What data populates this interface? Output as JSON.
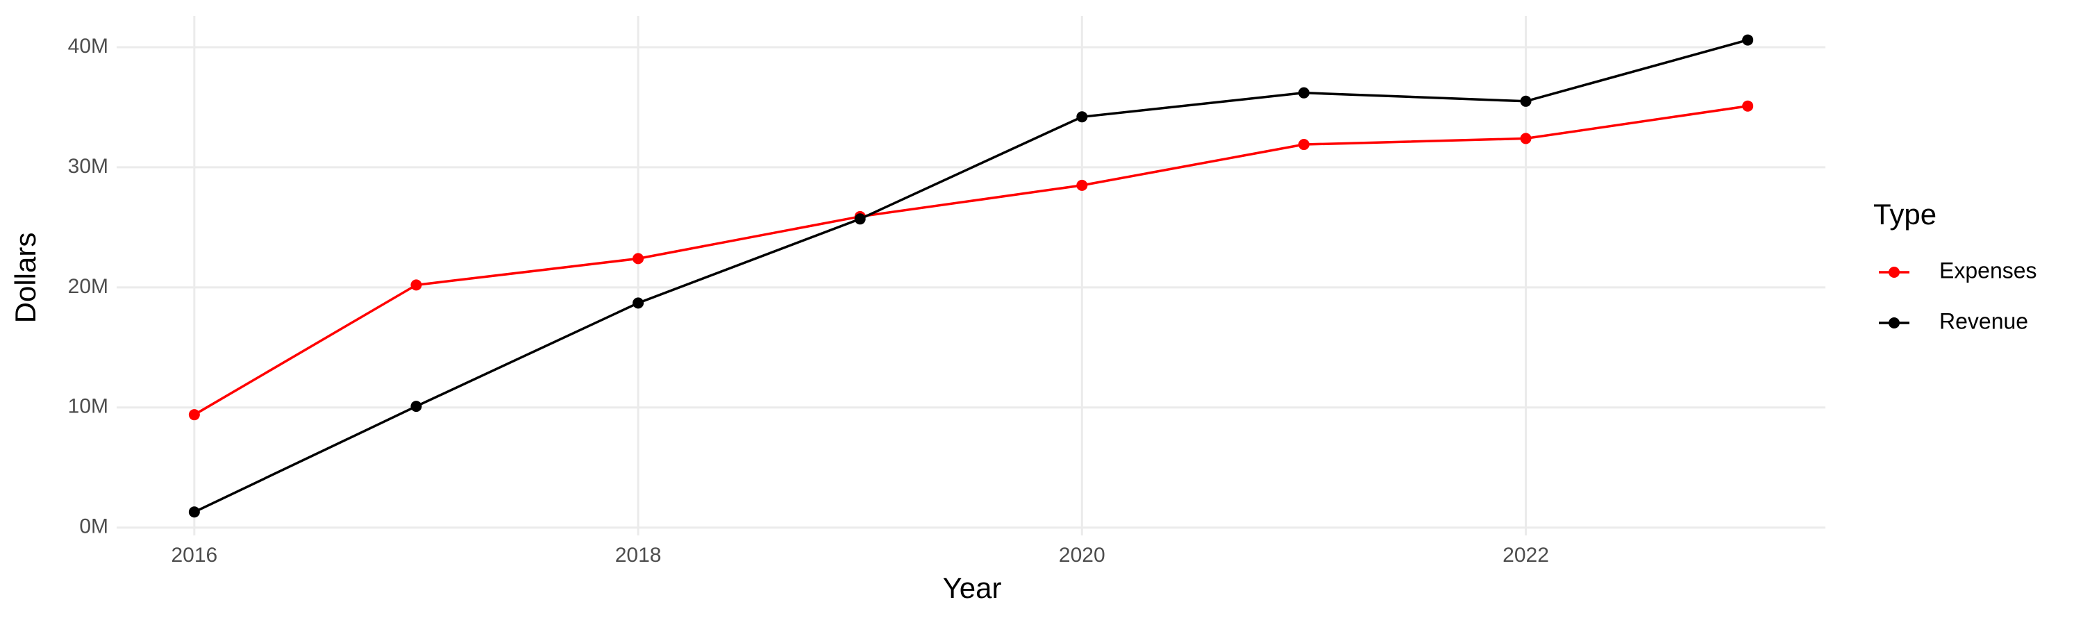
{
  "chart_data": {
    "type": "line",
    "x_label": "Year",
    "y_label": "Dollars",
    "legend_title": "Type",
    "legend": "right",
    "grid": true,
    "x": [
      2016,
      2017,
      2018,
      2019,
      2020,
      2021,
      2022,
      2023
    ],
    "series": [
      {
        "name": "Expenses",
        "color": "#ff0000",
        "values": [
          9400000,
          20200000,
          22400000,
          25900000,
          28500000,
          31900000,
          32400000,
          35100000
        ]
      },
      {
        "name": "Revenue",
        "color": "#000000",
        "values": [
          1300000,
          10100000,
          18700000,
          25700000,
          34200000,
          36200000,
          35500000,
          40600000
        ]
      }
    ],
    "xlim": [
      2015.65,
      2023.35
    ],
    "xticks": [
      2016,
      2018,
      2020,
      2022
    ],
    "ylim": [
      -650000,
      42600000
    ],
    "yticks": [
      {
        "value": 0,
        "label": "0M"
      },
      {
        "value": 10000000,
        "label": "10M"
      },
      {
        "value": 20000000,
        "label": "20M"
      },
      {
        "value": 30000000,
        "label": "30M"
      },
      {
        "value": 40000000,
        "label": "40M"
      }
    ]
  }
}
